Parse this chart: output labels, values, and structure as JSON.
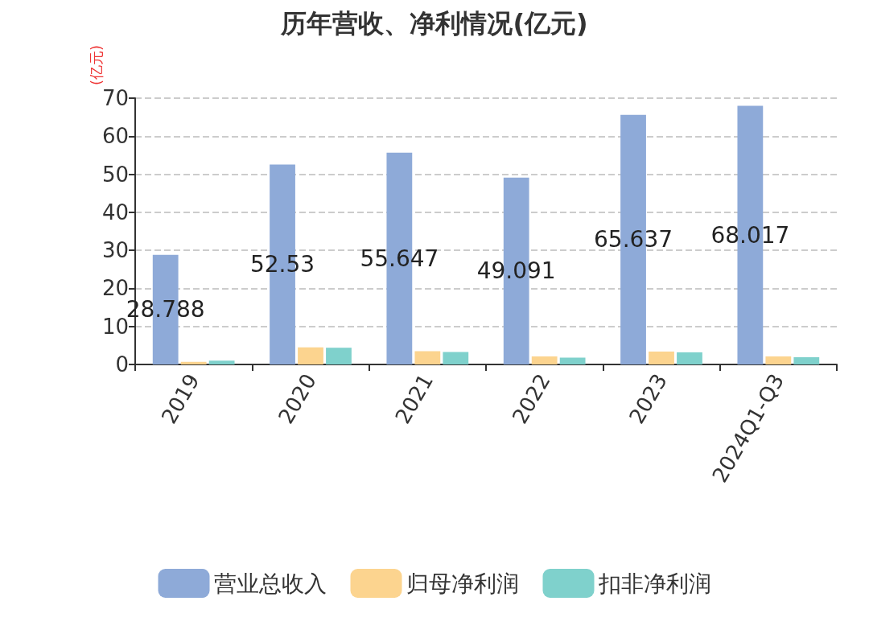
{
  "chart_data": {
    "type": "bar",
    "title": "历年营收、净利情况(亿元)",
    "ylabel": "(亿元)",
    "categories": [
      "2019",
      "2020",
      "2021",
      "2022",
      "2023",
      "2024Q1-Q3"
    ],
    "series": [
      {
        "name": "营业总收入",
        "color": "#8eaad8",
        "values": [
          28.788,
          52.53,
          55.647,
          49.091,
          65.637,
          68.017
        ],
        "value_labels": [
          "28.788",
          "52.53",
          "55.647",
          "49.091",
          "65.637",
          "68.017"
        ]
      },
      {
        "name": "归母净利润",
        "color": "#fcd48f",
        "values": [
          0.7,
          4.5,
          3.5,
          2.1,
          3.4,
          2.1
        ]
      },
      {
        "name": "扣非净利润",
        "color": "#7fd1cc",
        "values": [
          1.0,
          4.4,
          3.3,
          1.8,
          3.2,
          1.9
        ]
      }
    ],
    "ylim": [
      0,
      70
    ],
    "yticks": [
      0,
      10,
      20,
      30,
      40,
      50,
      60,
      70
    ],
    "grid": "y",
    "legend": "bottom"
  }
}
